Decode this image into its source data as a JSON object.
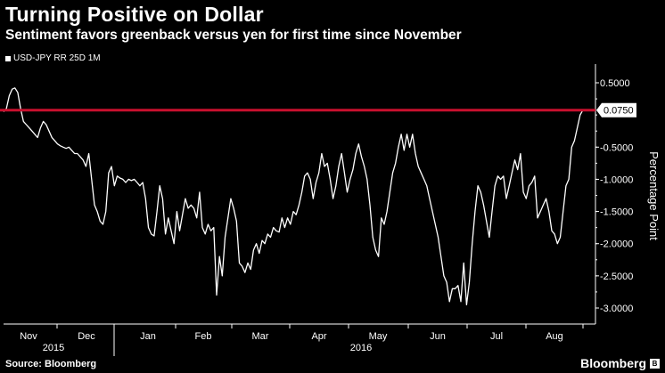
{
  "title": "Turning Positive on Dollar",
  "subtitle": "Sentiment favors greenback versus yen for first time since November",
  "legend_label": "USD-JPY RR 25D 1M",
  "source": "Source: Bloomberg",
  "brand": "Bloomberg",
  "brand_mark": "B",
  "chart_data": {
    "type": "line",
    "ylabel": "Percentage Point",
    "ylim": [
      -3.1,
      0.55
    ],
    "yticks": [
      "0.5000",
      "-0.5000",
      "-1.0000",
      "-1.5000",
      "-2.0000",
      "-2.5000",
      "-3.0000"
    ],
    "ytick_values": [
      0.5,
      -0.5,
      -1.0,
      -1.5,
      -2.0,
      -2.5,
      -3.0
    ],
    "month_labels": [
      "Nov",
      "Dec",
      "Jan",
      "Feb",
      "Mar",
      "Apr",
      "May",
      "Jun",
      "Jul",
      "Aug"
    ],
    "year_labels": [
      "2015",
      "2016"
    ],
    "reference_line": {
      "value": 0.075,
      "label": "0.0750",
      "color": "#c8102e"
    },
    "line_color": "#ffffff",
    "grid": false,
    "series": [
      {
        "values": [
          0.05,
          0.1,
          0.3,
          0.4,
          0.42,
          0.35,
          0.1,
          -0.1,
          -0.15,
          -0.2,
          -0.25,
          -0.3,
          -0.35,
          -0.2,
          -0.1,
          -0.15,
          -0.25,
          -0.35,
          -0.4,
          -0.45,
          -0.48,
          -0.5,
          -0.52,
          -0.5,
          -0.55,
          -0.6,
          -0.6,
          -0.65,
          -0.7,
          -0.8,
          -0.6,
          -1.0,
          -1.4,
          -1.5,
          -1.65,
          -1.7,
          -1.5,
          -0.9,
          -0.8,
          -1.1,
          -0.95,
          -0.98,
          -1.0,
          -1.05,
          -1.0,
          -1.02,
          -1.0,
          -1.05,
          -1.1,
          -1.05,
          -1.3,
          -1.75,
          -1.85,
          -1.88,
          -1.5,
          -1.1,
          -1.3,
          -1.85,
          -1.6,
          -1.8,
          -2.0,
          -1.5,
          -1.8,
          -1.55,
          -1.3,
          -1.45,
          -1.4,
          -1.45,
          -1.6,
          -1.2,
          -1.75,
          -1.85,
          -1.7,
          -1.8,
          -1.75,
          -2.8,
          -2.2,
          -2.5,
          -1.9,
          -1.6,
          -1.3,
          -1.45,
          -1.65,
          -2.3,
          -2.35,
          -2.45,
          -2.3,
          -2.4,
          -2.1,
          -2.0,
          -2.15,
          -1.95,
          -2.0,
          -1.85,
          -1.9,
          -1.75,
          -1.8,
          -1.82,
          -1.6,
          -1.75,
          -1.6,
          -1.7,
          -1.5,
          -1.55,
          -1.4,
          -1.2,
          -0.95,
          -0.9,
          -1.0,
          -1.3,
          -1.05,
          -0.9,
          -0.6,
          -0.8,
          -0.75,
          -1.0,
          -1.3,
          -1.1,
          -0.8,
          -0.6,
          -0.9,
          -1.2,
          -1.0,
          -0.85,
          -0.6,
          -0.45,
          -0.65,
          -0.8,
          -1.0,
          -1.4,
          -1.9,
          -2.1,
          -2.2,
          -1.6,
          -1.7,
          -1.5,
          -1.2,
          -0.9,
          -0.75,
          -0.5,
          -0.3,
          -0.55,
          -0.3,
          -0.5,
          -0.3,
          -0.6,
          -0.8,
          -0.9,
          -1.0,
          -1.1,
          -1.3,
          -1.5,
          -1.7,
          -1.9,
          -2.2,
          -2.5,
          -2.6,
          -2.9,
          -2.7,
          -2.7,
          -2.65,
          -2.9,
          -2.3,
          -2.95,
          -2.6,
          -2.0,
          -1.5,
          -1.1,
          -1.2,
          -1.4,
          -1.65,
          -1.9,
          -1.5,
          -1.1,
          -0.95,
          -1.0,
          -0.95,
          -1.3,
          -1.1,
          -0.9,
          -0.7,
          -0.85,
          -0.6,
          -1.2,
          -1.3,
          -1.1,
          -1.05,
          -0.95,
          -1.6,
          -1.5,
          -1.4,
          -1.3,
          -1.5,
          -1.8,
          -1.85,
          -2.0,
          -1.9,
          -1.5,
          -1.1,
          -1.0,
          -0.5,
          -0.4,
          -0.2,
          0.0,
          0.08
        ]
      }
    ]
  }
}
